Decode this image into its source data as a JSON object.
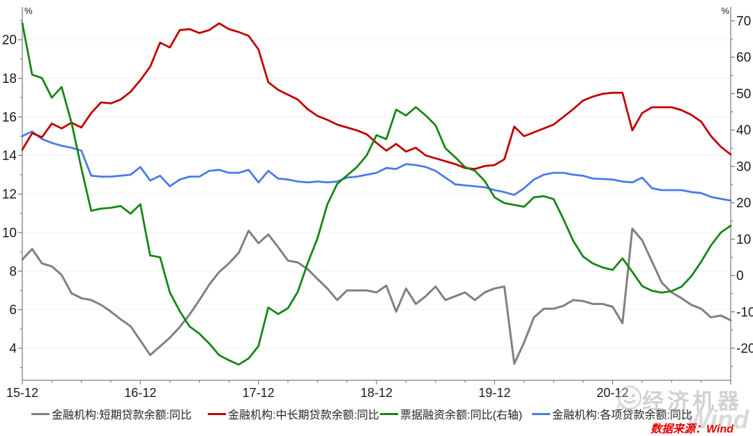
{
  "legend": {
    "items": [
      {
        "key": "short-term-loans",
        "label": "金融机构:短期贷款余额:同比",
        "color": "#808080",
        "x": 45
      },
      {
        "key": "medium-long-term-loans",
        "label": "金融机构:中长期贷款余额:同比",
        "color": "#c00000",
        "x": 298
      },
      {
        "key": "bill-financing",
        "label": "票据融资余额:同比(右轴)",
        "color": "#148714",
        "x": 545
      },
      {
        "key": "all-loans",
        "label": "金融机构:各项贷款余额:同比",
        "color": "#4d7ae9",
        "x": 763
      }
    ]
  },
  "footer": {
    "source": "数据来源：Wind"
  },
  "watermark": {
    "brand": "经济机器",
    "wind_text": "Wind"
  },
  "chart_data": {
    "type": "line",
    "title": "",
    "x_unit": "month",
    "x_range": [
      "2015-12",
      "2021-12"
    ],
    "x_tick_labels": [
      {
        "label": "15-12",
        "month": 0
      },
      {
        "label": "16-12",
        "month": 12
      },
      {
        "label": "17-12",
        "month": 24
      },
      {
        "label": "18-12",
        "month": 36
      },
      {
        "label": "19-12",
        "month": 48
      },
      {
        "label": "20-12",
        "month": 60
      }
    ],
    "left_axis": {
      "unit": "%",
      "min": 2.34,
      "max": 21.7,
      "major_ticks": [
        20,
        18,
        16,
        14,
        12,
        10,
        8,
        6,
        4
      ],
      "minor_step": 1
    },
    "right_axis": {
      "unit": "%",
      "min": -28.81,
      "max": 73.83,
      "major_ticks": [
        70,
        60,
        50,
        40,
        30,
        20,
        10,
        0,
        -10,
        -20
      ],
      "minor_step": 5
    },
    "grid": "horizontal-on-left-major-ticks",
    "legend_position": "bottom",
    "series": [
      {
        "key": "short-term-loans",
        "name": "金融机构:短期贷款余额:同比",
        "axis": "left",
        "color": "#808080",
        "width": 3,
        "values": [
          8.6,
          9.15,
          8.4,
          8.25,
          7.8,
          6.85,
          6.6,
          6.5,
          6.25,
          5.9,
          5.5,
          5.15,
          4.4,
          3.65,
          4.1,
          4.55,
          5.1,
          5.75,
          6.5,
          7.3,
          7.95,
          8.4,
          8.95,
          10.1,
          9.45,
          9.9,
          9.25,
          8.55,
          8.45,
          8.1,
          7.6,
          7.1,
          6.5,
          7.0,
          7.0,
          7.0,
          6.9,
          7.25,
          5.9,
          7.1,
          6.3,
          6.7,
          7.2,
          6.5,
          6.7,
          6.9,
          6.5,
          6.9,
          7.1,
          7.2,
          3.2,
          4.3,
          5.6,
          6.05,
          6.05,
          6.2,
          6.5,
          6.45,
          6.3,
          6.3,
          6.15,
          5.3,
          10.2,
          9.6,
          8.5,
          7.4,
          6.9,
          6.6,
          6.25,
          6.05,
          5.6,
          5.7,
          5.45
        ]
      },
      {
        "key": "all-loans",
        "name": "金融机构:各项贷款余额:同比",
        "axis": "left",
        "color": "#4d7ae9",
        "width": 2.8,
        "values": [
          15.0,
          15.25,
          14.85,
          14.65,
          14.5,
          14.4,
          14.25,
          12.95,
          12.9,
          12.9,
          12.95,
          13.0,
          13.4,
          12.7,
          12.95,
          12.4,
          12.75,
          12.9,
          12.9,
          13.2,
          13.25,
          13.1,
          13.1,
          13.25,
          12.6,
          13.2,
          12.8,
          12.75,
          12.65,
          12.6,
          12.65,
          12.6,
          12.65,
          12.85,
          12.9,
          13.0,
          13.1,
          13.35,
          13.3,
          13.55,
          13.5,
          13.4,
          13.2,
          12.85,
          12.5,
          12.45,
          12.4,
          12.35,
          12.2,
          12.1,
          11.95,
          12.3,
          12.75,
          13.0,
          13.1,
          13.1,
          13.0,
          12.95,
          12.8,
          12.78,
          12.75,
          12.65,
          12.6,
          12.85,
          12.3,
          12.2,
          12.2,
          12.2,
          12.1,
          12.05,
          11.85,
          11.75,
          11.66
        ]
      },
      {
        "key": "medium-long-term-loans",
        "name": "金融机构:中长期贷款余额:同比",
        "axis": "left",
        "color": "#c00000",
        "width": 2.8,
        "values": [
          14.3,
          15.15,
          14.95,
          15.65,
          15.4,
          15.7,
          15.45,
          16.2,
          16.75,
          16.7,
          16.9,
          17.3,
          17.9,
          18.6,
          19.85,
          19.6,
          20.5,
          20.55,
          20.35,
          20.5,
          20.85,
          20.55,
          20.4,
          20.2,
          19.5,
          17.8,
          17.4,
          17.15,
          16.9,
          16.4,
          16.05,
          15.85,
          15.6,
          15.45,
          15.3,
          15.1,
          14.65,
          14.25,
          14.6,
          14.2,
          14.4,
          14.0,
          13.85,
          13.7,
          13.55,
          13.35,
          13.3,
          13.45,
          13.5,
          13.8,
          15.5,
          15.0,
          15.2,
          15.4,
          15.6,
          16.0,
          16.4,
          16.85,
          17.05,
          17.2,
          17.25,
          17.25,
          15.3,
          16.2,
          16.5,
          16.5,
          16.5,
          16.35,
          16.1,
          15.75,
          15.0,
          14.45,
          14.05
        ]
      },
      {
        "key": "bill-financing",
        "name": "票据融资余额:同比(右轴)",
        "axis": "right",
        "color": "#148714",
        "width": 2.8,
        "values": [
          69.4,
          55.2,
          54.3,
          48.9,
          51.8,
          42.0,
          29.5,
          17.8,
          18.4,
          18.6,
          19.1,
          17.0,
          19.6,
          5.5,
          5.0,
          -4.7,
          -9.8,
          -14.0,
          -16.0,
          -18.7,
          -21.9,
          -23.3,
          -24.5,
          -22.8,
          -19.4,
          -8.8,
          -10.6,
          -9.0,
          -4.5,
          3.3,
          10.2,
          19.5,
          25.2,
          27.5,
          29.8,
          33.0,
          38.6,
          37.5,
          45.6,
          44.0,
          46.3,
          44.0,
          41.3,
          35.0,
          32.5,
          29.8,
          28.8,
          26.0,
          21.5,
          19.9,
          19.4,
          18.9,
          21.5,
          21.8,
          21.0,
          15.5,
          9.5,
          5.2,
          3.3,
          2.2,
          1.55,
          4.7,
          1.0,
          -2.9,
          -4.2,
          -4.7,
          -4.3,
          -3.1,
          -0.2,
          3.8,
          8.3,
          11.8,
          13.7
        ]
      }
    ]
  }
}
